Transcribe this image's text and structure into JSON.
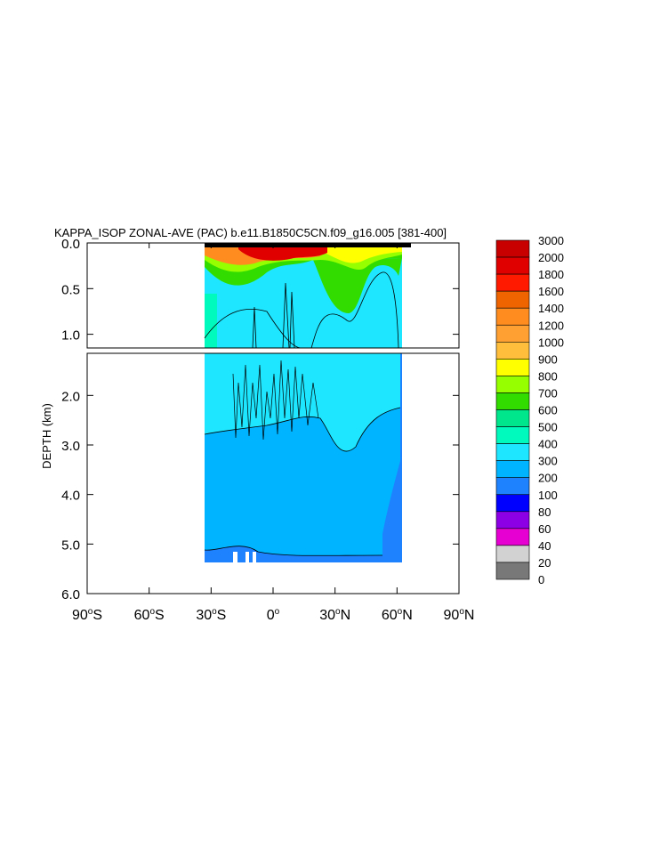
{
  "chart_data": {
    "type": "heatmap",
    "title": "KAPPA_ISOP ZONAL-AVE (PAC) b.e11.B1850C5CN.f09_g16.005 [381-400]",
    "ylabel": "DEPTH (km)",
    "xlim": [
      -90,
      90
    ],
    "ylim_upper_km": [
      0.0,
      1.15
    ],
    "ylim_lower_km": [
      1.15,
      6.0
    ],
    "y_ticks_upper": [
      "0.0",
      "0.5",
      "1.0"
    ],
    "y_ticks_upper_values": [
      0.0,
      0.5,
      1.0
    ],
    "y_ticks_lower": [
      "2.0",
      "3.0",
      "4.0",
      "5.0",
      "6.0"
    ],
    "y_ticks_lower_values": [
      2.0,
      3.0,
      4.0,
      5.0,
      6.0
    ],
    "x_ticks": [
      {
        "value": -90,
        "num": "90",
        "hemi": "S"
      },
      {
        "value": -60,
        "num": "60",
        "hemi": "S"
      },
      {
        "value": -30,
        "num": "30",
        "hemi": "S"
      },
      {
        "value": 0,
        "num": "0",
        "hemi": ""
      },
      {
        "value": 30,
        "num": "30",
        "hemi": "N"
      },
      {
        "value": 60,
        "num": "60",
        "hemi": "N"
      },
      {
        "value": 90,
        "num": "90",
        "hemi": "N"
      }
    ],
    "colorbar": {
      "levels": [
        "3000",
        "2000",
        "1800",
        "1600",
        "1400",
        "1200",
        "1000",
        "900",
        "800",
        "700",
        "600",
        "500",
        "400",
        "300",
        "200",
        "100",
        "80",
        "60",
        "40",
        "20",
        "0"
      ],
      "colors": [
        "#c80000",
        "#e00000",
        "#ff1a00",
        "#f06400",
        "#ff8c1e",
        "#ffa032",
        "#ffbe3c",
        "#ffff00",
        "#96ff00",
        "#32dc00",
        "#00e68c",
        "#00fabe",
        "#1ee6ff",
        "#00b4ff",
        "#1e82ff",
        "#0000ff",
        "#8c00e6",
        "#e600d2",
        "#d2d2d2",
        "#787878"
      ]
    },
    "data_extent": {
      "lat_min": -34,
      "lat_max": 65,
      "depth_max_km": 5.4
    },
    "background_class": "300-400",
    "deep_band_class": "200-300",
    "surface_max_class": "2000-3000"
  }
}
